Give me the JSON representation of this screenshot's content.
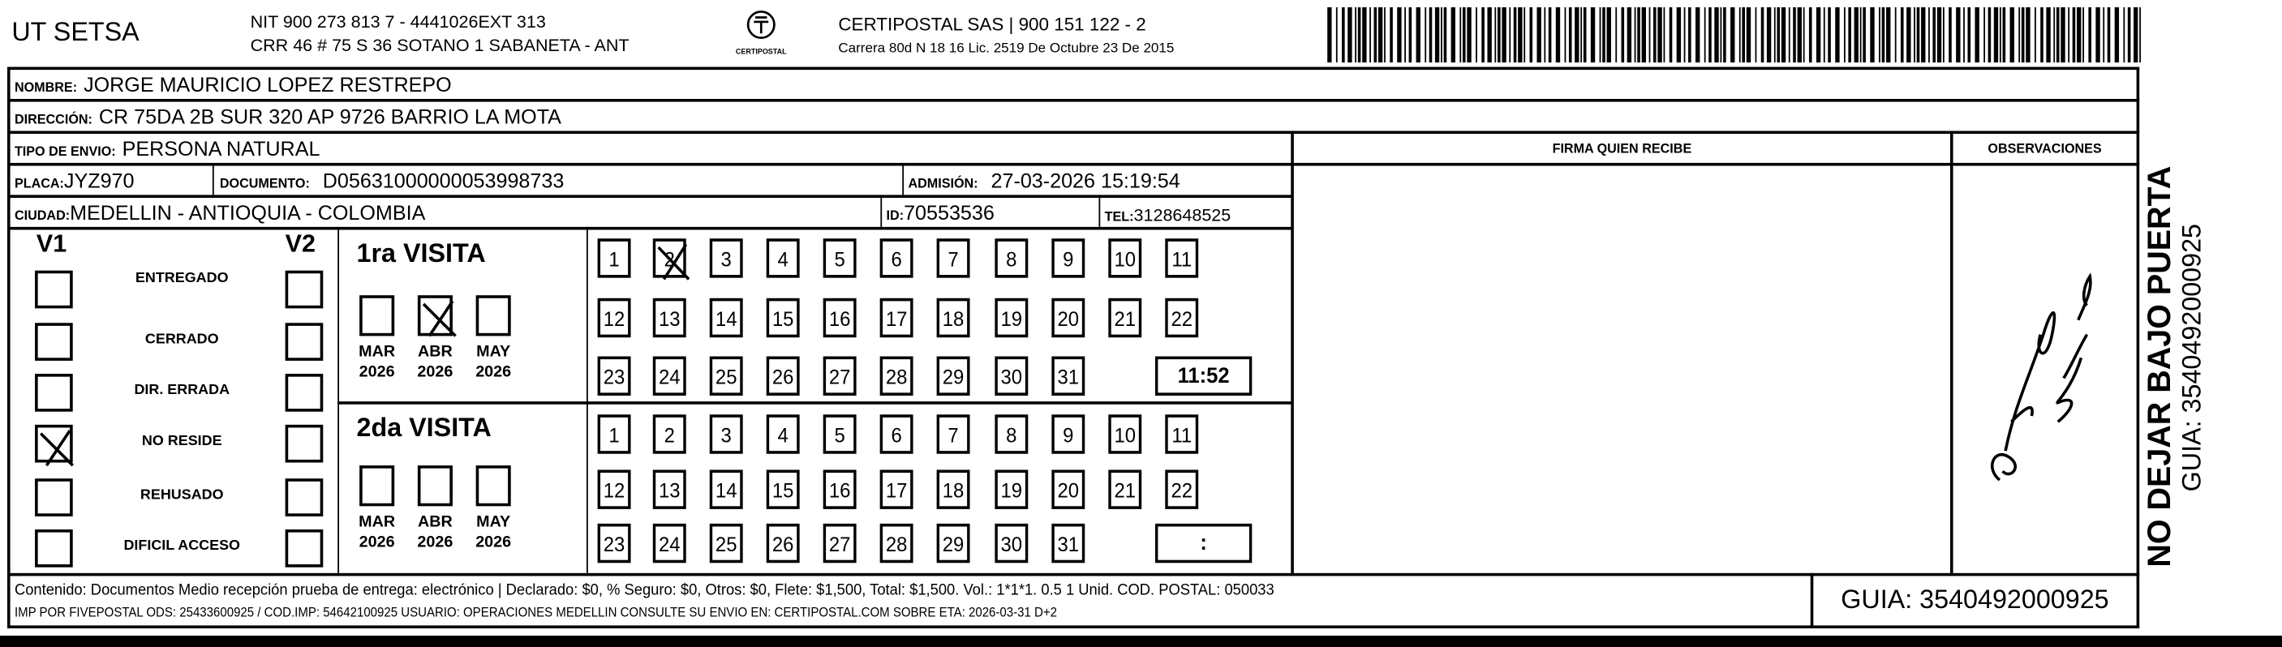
{
  "header": {
    "company": "UT SETSA",
    "nit_line": "NIT 900 273 813 7 - 4441026EXT 313",
    "address_line": "CRR 46 # 75 S 36 SOTANO 1 SABANETA - ANT",
    "logo_text": "CERTIPOSTAL",
    "carrier_line": "CERTIPOSTAL SAS | 900 151 122 - 2",
    "carrier_address": "Carrera 80d N 18 16  Lic. 2519 De Octubre 23 De 2015",
    "barcode_icon": "barcode-icon"
  },
  "recipient": {
    "nombre_label": "NOMBRE:",
    "nombre": "JORGE MAURICIO LOPEZ RESTREPO",
    "direccion_label": "DIRECCIÓN:",
    "direccion": "CR 75DA 2B SUR 320 AP 9726 BARRIO LA MOTA",
    "tipo_label": "TIPO DE ENVIO:",
    "tipo": "PERSONA NATURAL",
    "placa_label": "PLACA:",
    "placa": "JYZ970",
    "documento_label": "DOCUMENTO:",
    "documento": "D05631000000053998733",
    "admision_label": "ADMISIÓN:",
    "admision": "27-03-2026 15:19:54",
    "ciudad_label": "CIUDAD:",
    "ciudad": "MEDELLIN - ANTIOQUIA - COLOMBIA",
    "id_label": "ID:",
    "id": "70553536",
    "tel_label": "TEL:",
    "tel": "3128648525"
  },
  "columns": {
    "firma": "FIRMA QUIEN RECIBE",
    "observaciones": "OBSERVACIONES"
  },
  "status": {
    "v1": "V1",
    "v2": "V2",
    "items": [
      {
        "label": "ENTREGADO",
        "v1": false,
        "v2": false
      },
      {
        "label": "CERRADO",
        "v1": false,
        "v2": false
      },
      {
        "label": "DIR. ERRADA",
        "v1": false,
        "v2": false
      },
      {
        "label": "NO RESIDE",
        "v1": true,
        "v2": false
      },
      {
        "label": "REHUSADO",
        "v1": false,
        "v2": false
      },
      {
        "label": "DIFICIL ACCESO",
        "v1": false,
        "v2": false
      }
    ]
  },
  "visits": [
    {
      "title": "1ra VISITA",
      "months": [
        {
          "m": "MAR",
          "y": "2026",
          "checked": false
        },
        {
          "m": "ABR",
          "y": "2026",
          "checked": true
        },
        {
          "m": "MAY",
          "y": "2026",
          "checked": false
        }
      ],
      "checked_day": 2,
      "time": "11:52"
    },
    {
      "title": "2da VISITA",
      "months": [
        {
          "m": "MAR",
          "y": "2026",
          "checked": false
        },
        {
          "m": "ABR",
          "y": "2026",
          "checked": false
        },
        {
          "m": "MAY",
          "y": "2026",
          "checked": false
        }
      ],
      "checked_day": null,
      "time": ":"
    }
  ],
  "footer": {
    "line1": "Contenido: Documentos Medio recepción prueba de entrega: electrónico | Declarado: $0, % Seguro: $0, Otros: $0, Flete: $1,500, Total: $1,500. Vol.: 1*1*1. 0.5  1 Unid. COD. POSTAL: 050033",
    "line2": "IMP POR FIVEPOSTAL ODS: 25433600925 / COD.IMP: 54642100925 USUARIO: OPERACIONES MEDELLIN CONSULTE SU ENVIO EN: CERTIPOSTAL.COM SOBRE ETA: 2026-03-31 D+2",
    "guia": "GUIA: 3540492000925"
  },
  "side": {
    "warning": "NO DEJAR BAJO PUERTA",
    "guia": "GUIA: 3540492000925"
  }
}
